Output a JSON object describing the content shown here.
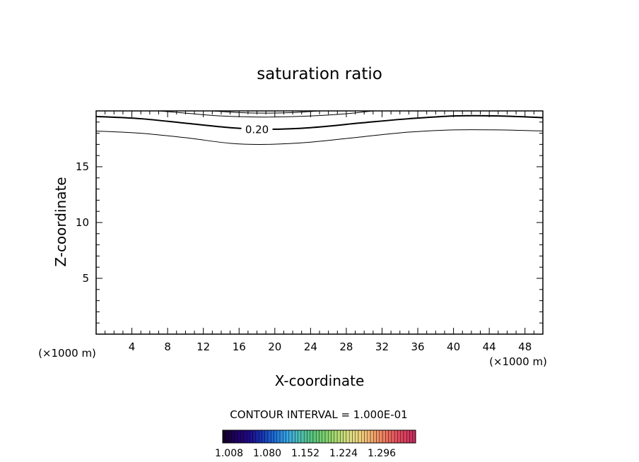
{
  "chart_data": {
    "type": "contour",
    "title": "saturation ratio",
    "xlabel": "X-coordinate",
    "ylabel": "Z-coordinate",
    "x_unit_left": "(×1000 m)",
    "x_unit_right": "(×1000 m)",
    "xlim": [
      0,
      50
    ],
    "ylim": [
      0,
      20
    ],
    "x_ticks": [
      4,
      8,
      12,
      16,
      20,
      24,
      28,
      32,
      36,
      40,
      44,
      48
    ],
    "y_ticks": [
      5,
      10,
      15
    ],
    "contour_interval_text": "CONTOUR INTERVAL = 1.000E-01",
    "contour_label": "0.20",
    "contours": [
      {
        "level": 0.1,
        "bold": false,
        "points": [
          [
            0,
            18.2
          ],
          [
            5,
            18.0
          ],
          [
            10,
            17.6
          ],
          [
            15,
            17.1
          ],
          [
            19,
            17.0
          ],
          [
            24,
            17.2
          ],
          [
            30,
            17.7
          ],
          [
            35,
            18.1
          ],
          [
            40,
            18.3
          ],
          [
            45,
            18.3
          ],
          [
            50,
            18.2
          ]
        ]
      },
      {
        "level": 0.2,
        "bold": true,
        "points": [
          [
            0,
            19.5
          ],
          [
            5,
            19.3
          ],
          [
            10,
            18.9
          ],
          [
            15,
            18.5
          ],
          [
            19,
            18.35
          ],
          [
            24,
            18.5
          ],
          [
            30,
            18.95
          ],
          [
            35,
            19.3
          ],
          [
            40,
            19.55
          ],
          [
            45,
            19.55
          ],
          [
            50,
            19.4
          ]
        ]
      },
      {
        "level": 0.3,
        "bold": false,
        "points": [
          [
            7,
            20.0
          ],
          [
            10,
            19.8
          ],
          [
            14,
            19.55
          ],
          [
            19,
            19.45
          ],
          [
            24,
            19.55
          ],
          [
            28,
            19.75
          ],
          [
            31,
            20.0
          ]
        ]
      },
      {
        "level": 0.4,
        "bold": false,
        "points": [
          [
            13,
            20.0
          ],
          [
            16,
            19.85
          ],
          [
            19,
            19.8
          ],
          [
            22,
            19.85
          ],
          [
            25,
            20.0
          ]
        ]
      }
    ],
    "colorbar": {
      "tick_labels": [
        "1.008",
        "1.080",
        "1.152",
        "1.224",
        "1.296"
      ],
      "colors": [
        "#14002a",
        "#1e0063",
        "#1f0a8a",
        "#1536b5",
        "#1e6fd6",
        "#37a6e4",
        "#4fbfb4",
        "#57c47b",
        "#7dd16c",
        "#b5db72",
        "#e0dd84",
        "#f3c97a",
        "#f29b66",
        "#ec6a5c",
        "#e0435d",
        "#c72e5e"
      ]
    }
  }
}
